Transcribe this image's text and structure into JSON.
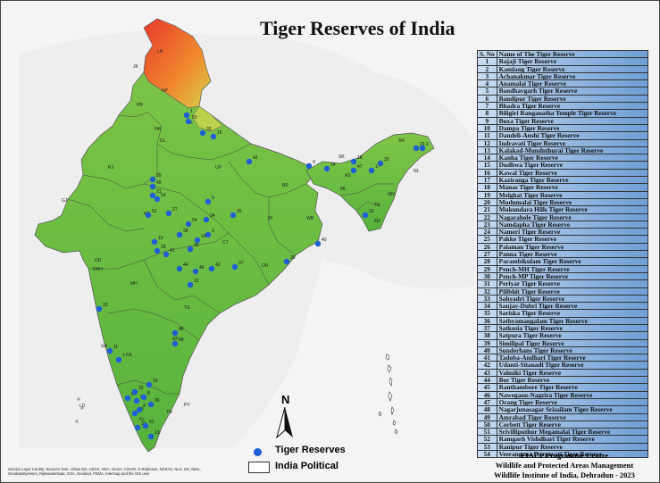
{
  "map": {
    "title": "Tiger Reserves of India",
    "table": {
      "headers": [
        "S. No",
        "Name of The Tiger Reserve"
      ],
      "rows": [
        [
          "1",
          "Rajaji Tiger Reserve"
        ],
        [
          "2",
          "Kamlang Tiger Reserve"
        ],
        [
          "3",
          "Achanakmar Tiger Reserve"
        ],
        [
          "4",
          "Anamalai Tiger Reserve"
        ],
        [
          "5",
          "Bandhavgarh Tiger Reserve"
        ],
        [
          "6",
          "Bandipur Tiger Reserve"
        ],
        [
          "7",
          "Bhadra Tiger Reserve"
        ],
        [
          "8",
          "Biligiri Ranganatha Temple Tiger Reserve"
        ],
        [
          "9",
          "Buxa Tiger Reserve"
        ],
        [
          "10",
          "Dampa Tiger Reserve"
        ],
        [
          "11",
          "Dandeli-Anshi Tiger Reserve"
        ],
        [
          "12",
          "Indravati Tiger Reserve"
        ],
        [
          "13",
          "Kalakad-Mundnthurai Tiger Reserve"
        ],
        [
          "14",
          "Kanha Tiger Reserve"
        ],
        [
          "15",
          "Dudhwa Tiger Reserve"
        ],
        [
          "16",
          "Kawal Tiger Reserve"
        ],
        [
          "17",
          "Kaziranga Tiger Reserve"
        ],
        [
          "18",
          "Manas Tiger Reserve"
        ],
        [
          "19",
          "Melghat Tiger Reserve"
        ],
        [
          "20",
          "Mudumalai Tiger Reserve"
        ],
        [
          "21",
          "Mukundara Hills Tiger Reserve"
        ],
        [
          "22",
          "Nagarahole Tiger Reserve"
        ],
        [
          "23",
          "Namdapha Tiger Reserve"
        ],
        [
          "24",
          "Nameri Tiger Reserve"
        ],
        [
          "25",
          "Pakke Tiger Reserve"
        ],
        [
          "26",
          "Palamau Tiger Reserve"
        ],
        [
          "27",
          "Panna Tiger Reserve"
        ],
        [
          "28",
          "Parambikulam Tiger Reserve"
        ],
        [
          "29",
          "Pench-MH Tiger Reserve"
        ],
        [
          "30",
          "Pench-MP Tiger Reserve"
        ],
        [
          "31",
          "Periyar Tiger Reserve"
        ],
        [
          "32",
          "Pilibhit Tiger Reserve"
        ],
        [
          "33",
          "Sahyadri Tiger Reserve"
        ],
        [
          "34",
          "Sanjay-Dubri Tiger Reserve"
        ],
        [
          "35",
          "Sariska Tiger Reserve"
        ],
        [
          "36",
          "Sathyamangalam Tiger Reserve"
        ],
        [
          "37",
          "Satkosia Tiger Reserve"
        ],
        [
          "38",
          "Satpura Tiger Reserve"
        ],
        [
          "39",
          "Similipal Tiger Reserve"
        ],
        [
          "40",
          "Sunderbans Tiger Reserve"
        ],
        [
          "41",
          "Tadoba-Andhari Tiger Reserve"
        ],
        [
          "42",
          "Udanti-Sitanadi Tiger Reserve"
        ],
        [
          "43",
          "Valmiki Tiger Reserve"
        ],
        [
          "44",
          "Bor Tiger Reserve"
        ],
        [
          "45",
          "Ranthambore Tiger Reserve"
        ],
        [
          "46",
          "Nawegaon-Nagzira Tiger Reserve"
        ],
        [
          "47",
          "Orang Tiger Reserve"
        ],
        [
          "48",
          "Nagarjunasagar Srisailam Tiger Reserve"
        ],
        [
          "49",
          "Amrabad Tiger Reserve"
        ],
        [
          "50",
          "Corbett Tiger Reserve"
        ],
        [
          "51",
          "Srivilliputhur Megamalai Tiger Reserve"
        ],
        [
          "52",
          "Ramgarh Vishdhari Tiger Reserve"
        ],
        [
          "53",
          "Ranipur Tiger Reserve"
        ],
        [
          "54",
          "Veerangana Durgavati Tiger Reserve"
        ]
      ]
    },
    "legend": {
      "reserves_label": "Tiger Reserves",
      "political_label": "India Political",
      "dot_color": "#1f5fd6"
    },
    "north_label": "N",
    "credits": "Service Layer Credits: Sources: Esri, Airbus DS, USGS, NGA, NASA, CGIAR, N Robinson, NCEAS, NLS, OS, NMA, Geodatastyrelsen, Rijkswaterstaat, GSA, Geoland, FEMA, Intermap and the GIS user",
    "organization": {
      "line1": "EIACP Programme Centre",
      "line2": "Wildlife and Protected Areas Management",
      "line3": "Wildlife Institute of India, Dehradun - 2023"
    },
    "state_labels": [
      "LA",
      "JK",
      "HP",
      "PB",
      "UK",
      "HR",
      "DL",
      "UP",
      "RJ",
      "GJ",
      "MP",
      "BR",
      "JH",
      "WB",
      "CT",
      "OR",
      "MH",
      "TG",
      "AP",
      "KA",
      "GA",
      "KL",
      "TN",
      "SK",
      "AS",
      "AR",
      "NL",
      "MN",
      "ML",
      "TR",
      "MZ",
      "DD",
      "DNH",
      "PY",
      "LD"
    ],
    "reserve_labels": [
      "1",
      "50",
      "15",
      "32",
      "43",
      "35",
      "45",
      "21",
      "52",
      "53",
      "27",
      "5",
      "34",
      "26",
      "54",
      "38",
      "14",
      "30",
      "29",
      "19",
      "41",
      "44",
      "46",
      "12",
      "3",
      "42",
      "37",
      "39",
      "40",
      "24",
      "9",
      "18",
      "47",
      "17",
      "25",
      "2",
      "23",
      "10",
      "48",
      "49",
      "33",
      "11",
      "7",
      "22",
      "6",
      "8",
      "20",
      "36",
      "4",
      "28",
      "31",
      "51",
      "13",
      "16"
    ],
    "colors": {
      "lowland": "#53b33c",
      "upland": "#7cc544",
      "highland": "#b9d24a",
      "mountain": "#e0432b",
      "sea": "#f2f2f2"
    }
  }
}
